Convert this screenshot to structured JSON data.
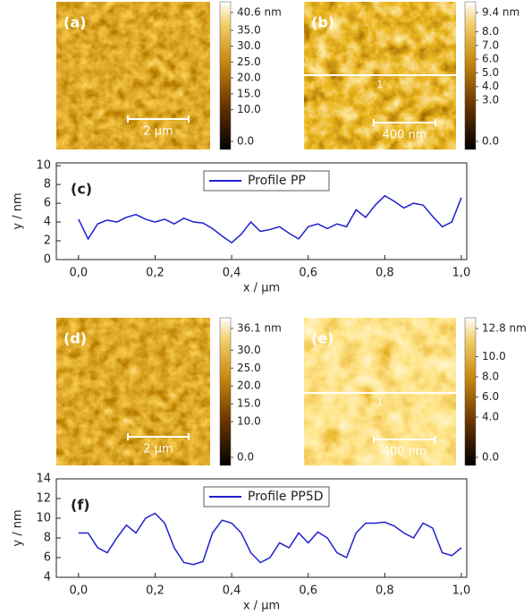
{
  "chart_data": [
    {
      "type": "afm-image",
      "label": "(a)",
      "scale_bar": "2 µm",
      "ylim": [
        0,
        40.6
      ],
      "yticks": [
        {
          "value": 40.6,
          "label": "40.6 nm"
        },
        {
          "value": 35,
          "label": "35.0"
        },
        {
          "value": 30,
          "label": "30.0"
        },
        {
          "value": 25,
          "label": "25.0"
        },
        {
          "value": 20,
          "label": "20.0"
        },
        {
          "value": 15,
          "label": "15.0"
        },
        {
          "value": 10,
          "label": "10.0"
        },
        {
          "value": 0,
          "label": "0.0"
        }
      ]
    },
    {
      "type": "afm-image",
      "label": "(b)",
      "scale_bar": "400 nm",
      "annotation": "1",
      "ylim": [
        0,
        9.4
      ],
      "yticks": [
        {
          "value": 9.4,
          "label": "9.4 nm"
        },
        {
          "value": 8,
          "label": "8.0"
        },
        {
          "value": 7,
          "label": "7.0"
        },
        {
          "value": 6,
          "label": "6.0"
        },
        {
          "value": 5,
          "label": "5.0"
        },
        {
          "value": 4,
          "label": "4.0"
        },
        {
          "value": 3,
          "label": "3.0"
        },
        {
          "value": 0,
          "label": "0.0"
        }
      ]
    },
    {
      "type": "line",
      "label": "(c)",
      "xlabel": "x / µm",
      "ylabel": "y / nm",
      "x": [
        0,
        0.025,
        0.05,
        0.075,
        0.1,
        0.125,
        0.15,
        0.175,
        0.2,
        0.225,
        0.25,
        0.275,
        0.3,
        0.325,
        0.35,
        0.375,
        0.4,
        0.425,
        0.45,
        0.475,
        0.5,
        0.525,
        0.55,
        0.575,
        0.6,
        0.625,
        0.65,
        0.675,
        0.7,
        0.725,
        0.75,
        0.775,
        0.8,
        0.825,
        0.85,
        0.875,
        0.9,
        0.925,
        0.95,
        0.975,
        1.0
      ],
      "series": [
        {
          "name": "Profile PP",
          "color": "#1f1fd0",
          "values": [
            4.3,
            2.2,
            3.8,
            4.2,
            4.0,
            4.5,
            4.8,
            4.3,
            4.0,
            4.3,
            3.8,
            4.4,
            4.0,
            3.9,
            3.3,
            2.5,
            1.8,
            2.7,
            4.0,
            3.0,
            3.2,
            3.5,
            2.8,
            2.2,
            3.5,
            3.8,
            3.3,
            3.8,
            3.5,
            5.3,
            4.5,
            5.8,
            6.8,
            6.2,
            5.5,
            6.0,
            5.8,
            4.6,
            3.5,
            4.0,
            6.6
          ]
        }
      ],
      "xlim": [
        -0.058,
        1.014
      ],
      "ylim": [
        0,
        10.3
      ],
      "xticks": [
        {
          "value": 0,
          "label": "0,0"
        },
        {
          "value": 0.2,
          "label": "0,2"
        },
        {
          "value": 0.4,
          "label": "0,4"
        },
        {
          "value": 0.6,
          "label": "0,6"
        },
        {
          "value": 0.8,
          "label": "0,8"
        },
        {
          "value": 1,
          "label": "1,0"
        }
      ],
      "yticks": [
        0,
        2,
        4,
        6,
        8,
        10
      ]
    },
    {
      "type": "afm-image",
      "label": "(d)",
      "scale_bar": "2 µm",
      "ylim": [
        0,
        36.1
      ],
      "yticks": [
        {
          "value": 36.1,
          "label": "36.1 nm"
        },
        {
          "value": 30,
          "label": "30.0"
        },
        {
          "value": 25,
          "label": "25.0"
        },
        {
          "value": 20,
          "label": "20.0"
        },
        {
          "value": 15,
          "label": "15.0"
        },
        {
          "value": 10,
          "label": "10.0"
        },
        {
          "value": 0,
          "label": "0.0"
        }
      ]
    },
    {
      "type": "afm-image",
      "label": "(e)",
      "scale_bar": "400 nm",
      "annotation": "1",
      "ylim": [
        0,
        12.8
      ],
      "yticks": [
        {
          "value": 12.8,
          "label": "12.8 nm"
        },
        {
          "value": 10,
          "label": "10.0"
        },
        {
          "value": 8,
          "label": "8.0"
        },
        {
          "value": 6,
          "label": "6.0"
        },
        {
          "value": 4,
          "label": "4.0"
        },
        {
          "value": 0,
          "label": "0.0"
        }
      ]
    },
    {
      "type": "line",
      "label": "(f)",
      "xlabel": "x / µm",
      "ylabel": "y / nm",
      "x": [
        0,
        0.025,
        0.05,
        0.075,
        0.1,
        0.125,
        0.15,
        0.175,
        0.2,
        0.225,
        0.25,
        0.275,
        0.3,
        0.325,
        0.35,
        0.375,
        0.4,
        0.425,
        0.45,
        0.475,
        0.5,
        0.525,
        0.55,
        0.575,
        0.6,
        0.625,
        0.65,
        0.675,
        0.7,
        0.725,
        0.75,
        0.775,
        0.8,
        0.825,
        0.85,
        0.875,
        0.9,
        0.925,
        0.95,
        0.975,
        1.0
      ],
      "series": [
        {
          "name": "Profile PP5D",
          "color": "#1f1fd0",
          "values": [
            8.5,
            8.5,
            7.0,
            6.5,
            8.0,
            9.3,
            8.5,
            10.0,
            10.5,
            9.5,
            7.0,
            5.5,
            5.3,
            5.6,
            8.5,
            9.8,
            9.5,
            8.5,
            6.5,
            5.5,
            6.0,
            7.5,
            7.0,
            8.5,
            7.5,
            8.6,
            8.0,
            6.5,
            6.0,
            8.5,
            9.5,
            9.5,
            9.6,
            9.2,
            8.5,
            8.0,
            9.5,
            9.0,
            6.5,
            6.2,
            7.0
          ]
        }
      ],
      "xlim": [
        -0.058,
        1.014
      ],
      "ylim": [
        4,
        14
      ],
      "xticks": [
        {
          "value": 0,
          "label": "0,0"
        },
        {
          "value": 0.2,
          "label": "0,2"
        },
        {
          "value": 0.4,
          "label": "0,4"
        },
        {
          "value": 0.6,
          "label": "0,6"
        },
        {
          "value": 0.8,
          "label": "0,8"
        },
        {
          "value": 1,
          "label": "1,0"
        }
      ],
      "yticks": [
        4,
        6,
        8,
        10,
        12,
        14
      ]
    }
  ]
}
